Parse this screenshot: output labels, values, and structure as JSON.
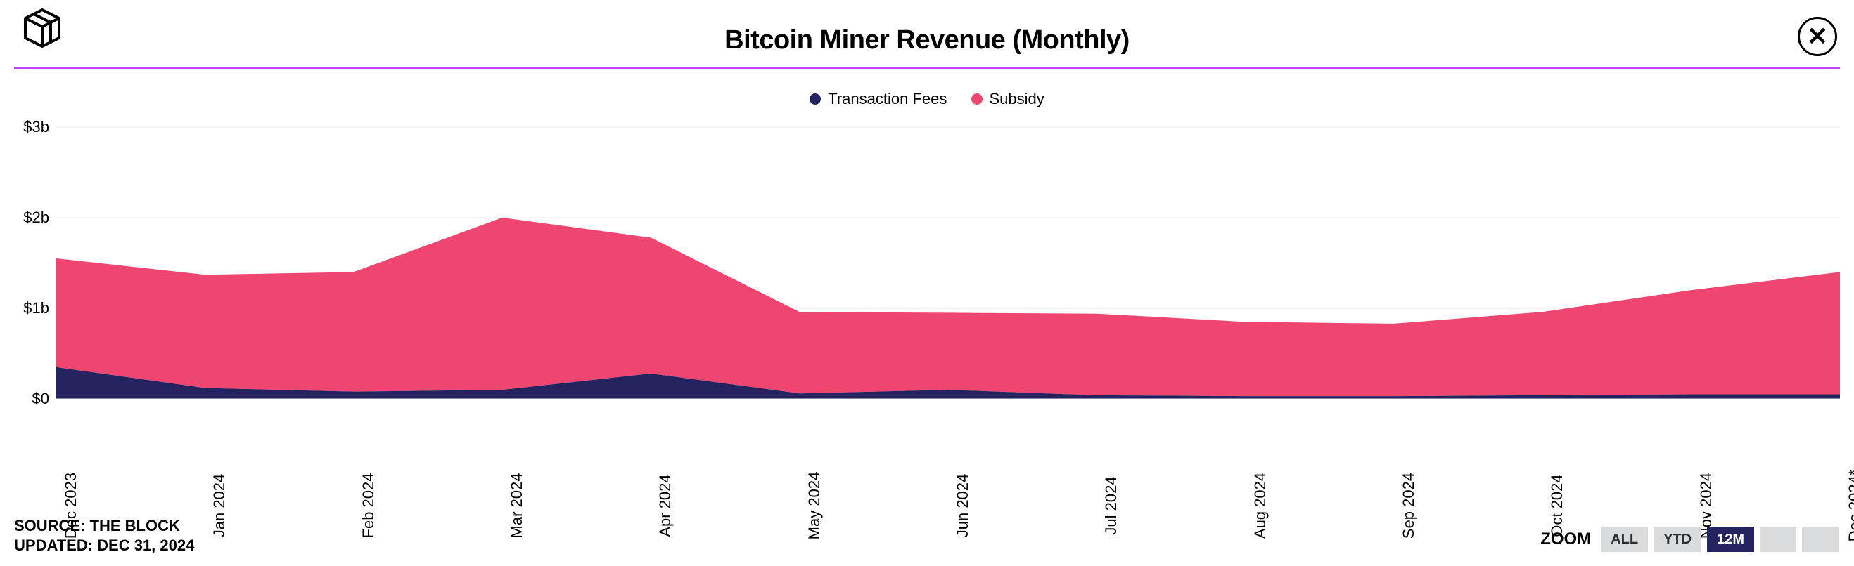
{
  "title": "Bitcoin Miner Revenue (Monthly)",
  "divider_color": "#c040ff",
  "legend": [
    {
      "label": "Transaction Fees",
      "color": "#24225f"
    },
    {
      "label": "Subsidy",
      "color": "#ef4571"
    }
  ],
  "chart": {
    "type": "stacked-area",
    "background_color": "#ffffff",
    "grid_color": "#e9e9e9",
    "axis_color": "#000000",
    "y": {
      "min": 0,
      "max": 3.1,
      "ticks": [
        0,
        1,
        2,
        3
      ],
      "tick_labels": [
        "$0",
        "$1b",
        "$2b",
        "$3b"
      ],
      "label_fontsize": 22
    },
    "x": {
      "categories": [
        "Dec 2023",
        "Jan 2024",
        "Feb 2024",
        "Mar 2024",
        "Apr 2024",
        "May 2024",
        "Jun 2024",
        "Jul 2024",
        "Aug 2024",
        "Sep 2024",
        "Oct 2024",
        "Nov 2024",
        "Dec 2024*"
      ],
      "label_fontsize": 22,
      "label_rotation_deg": -90
    },
    "series": [
      {
        "name": "Transaction Fees",
        "color": "#24225f",
        "values": [
          0.35,
          0.12,
          0.08,
          0.1,
          0.28,
          0.06,
          0.1,
          0.04,
          0.03,
          0.03,
          0.04,
          0.05,
          0.05
        ]
      },
      {
        "name": "Subsidy",
        "color": "#ef4571",
        "values": [
          1.2,
          1.25,
          1.32,
          1.9,
          1.5,
          0.9,
          0.85,
          0.9,
          0.82,
          0.8,
          0.92,
          1.15,
          1.35
        ]
      }
    ]
  },
  "footer": {
    "source_label": "SOURCE: THE BLOCK",
    "updated_label": "UPDATED: DEC 31, 2024"
  },
  "zoom": {
    "label": "ZOOM",
    "buttons": [
      "ALL",
      "YTD",
      "12M",
      "",
      ""
    ],
    "active_index": 2,
    "inactive_bg": "#d9dbdd",
    "active_bg": "#24225f",
    "active_fg": "#ffffff"
  }
}
